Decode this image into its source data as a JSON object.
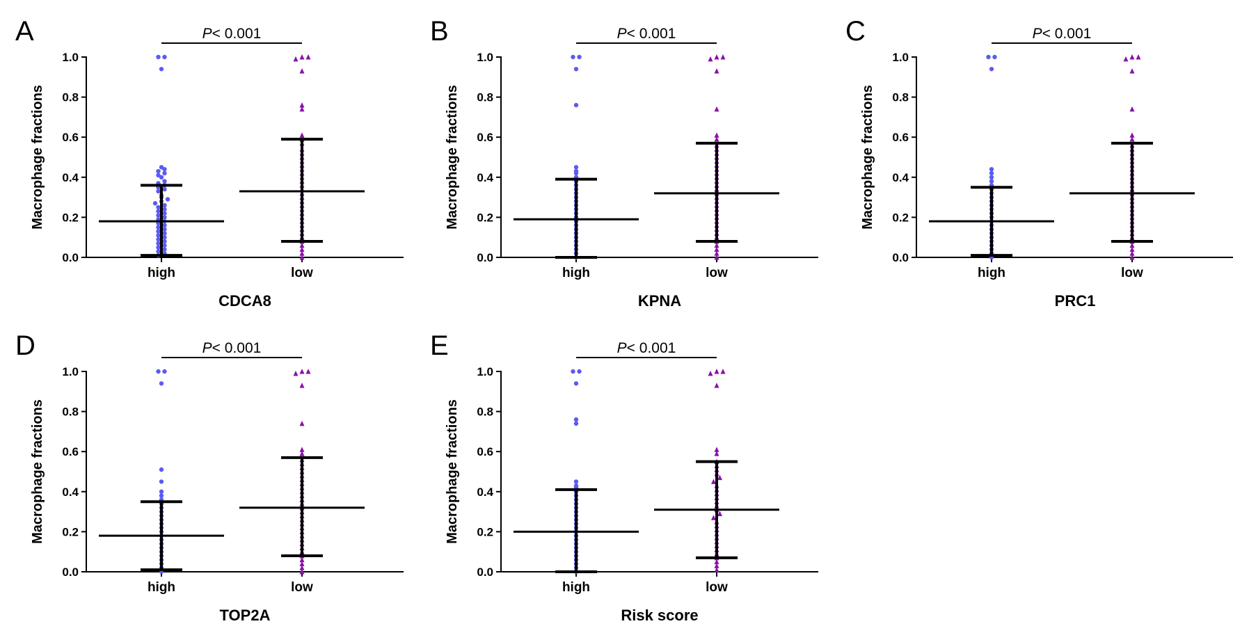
{
  "significance_label": {
    "prefix": "P",
    "rest": "< 0.001"
  },
  "colors": {
    "high": "#5b5bf0",
    "low": "#8b10a8",
    "axis": "#000000"
  },
  "chart_data": [
    {
      "type": "scatter",
      "panel": "A",
      "xlabel": "CDCA8",
      "ylabel": "Macrophage fractions",
      "categories": [
        "high",
        "low"
      ],
      "ylim": [
        0,
        1.0
      ],
      "yticks": [
        "0.0",
        "0.2",
        "0.4",
        "0.6",
        "0.8",
        "1.0"
      ],
      "series": [
        {
          "marker": "circle",
          "mean": 0.18,
          "sd_low": 0.01,
          "sd_high": 0.36,
          "values": [
            1.0,
            1.0,
            0.94,
            0.45,
            0.44,
            0.43,
            0.42,
            0.41,
            0.4,
            0.38,
            0.37,
            0.36,
            0.35,
            0.34,
            0.33,
            0.31,
            0.3,
            0.29,
            0.28,
            0.27,
            0.26,
            0.25,
            0.24,
            0.23,
            0.22,
            0.21,
            0.2,
            0.19,
            0.18,
            0.17,
            0.16,
            0.15,
            0.14,
            0.13,
            0.12,
            0.11,
            0.1,
            0.09,
            0.08,
            0.07,
            0.06,
            0.05,
            0.04,
            0.03,
            0.02,
            0.01
          ]
        },
        {
          "marker": "triangle",
          "mean": 0.33,
          "sd_low": 0.08,
          "sd_high": 0.59,
          "values": [
            1.0,
            1.0,
            0.99,
            0.93,
            0.76,
            0.74,
            0.61,
            0.59,
            0.57,
            0.54,
            0.52,
            0.5,
            0.48,
            0.46,
            0.44,
            0.42,
            0.4,
            0.38,
            0.36,
            0.34,
            0.32,
            0.3,
            0.28,
            0.26,
            0.24,
            0.22,
            0.2,
            0.18,
            0.16,
            0.14,
            0.12,
            0.1,
            0.08,
            0.06,
            0.04,
            0.02,
            0.0
          ]
        }
      ]
    },
    {
      "type": "scatter",
      "panel": "B",
      "xlabel": "KPNA",
      "ylabel": "Macrophage fractions",
      "categories": [
        "high",
        "low"
      ],
      "ylim": [
        0,
        1.0
      ],
      "yticks": [
        "0.0",
        "0.2",
        "0.4",
        "0.6",
        "0.8",
        "1.0"
      ],
      "series": [
        {
          "marker": "circle",
          "mean": 0.19,
          "sd_low": 0.0,
          "sd_high": 0.39,
          "values": [
            1.0,
            1.0,
            0.94,
            0.76,
            0.45,
            0.43,
            0.42,
            0.4,
            0.38,
            0.36,
            0.34,
            0.32,
            0.3,
            0.28,
            0.26,
            0.24,
            0.22,
            0.2,
            0.18,
            0.16,
            0.14,
            0.12,
            0.1,
            0.08,
            0.06,
            0.04,
            0.02,
            0.0
          ]
        },
        {
          "marker": "triangle",
          "mean": 0.32,
          "sd_low": 0.08,
          "sd_high": 0.57,
          "values": [
            1.0,
            1.0,
            0.99,
            0.93,
            0.74,
            0.61,
            0.59,
            0.56,
            0.54,
            0.52,
            0.5,
            0.48,
            0.46,
            0.44,
            0.42,
            0.4,
            0.38,
            0.36,
            0.34,
            0.32,
            0.3,
            0.28,
            0.26,
            0.24,
            0.22,
            0.2,
            0.18,
            0.16,
            0.14,
            0.12,
            0.1,
            0.08,
            0.06,
            0.04,
            0.02,
            0.0
          ]
        }
      ]
    },
    {
      "type": "scatter",
      "panel": "C",
      "xlabel": "PRC1",
      "ylabel": "Macrophage fractions",
      "categories": [
        "high",
        "low"
      ],
      "ylim": [
        0,
        1.0
      ],
      "yticks": [
        "0.0",
        "0.2",
        "0.4",
        "0.6",
        "0.8",
        "1.0"
      ],
      "series": [
        {
          "marker": "circle",
          "mean": 0.18,
          "sd_low": 0.01,
          "sd_high": 0.35,
          "values": [
            1.0,
            1.0,
            0.94,
            0.44,
            0.42,
            0.4,
            0.38,
            0.36,
            0.34,
            0.32,
            0.3,
            0.28,
            0.26,
            0.24,
            0.22,
            0.2,
            0.18,
            0.16,
            0.14,
            0.12,
            0.1,
            0.08,
            0.06,
            0.04,
            0.02,
            0.0
          ]
        },
        {
          "marker": "triangle",
          "mean": 0.32,
          "sd_low": 0.08,
          "sd_high": 0.57,
          "values": [
            1.0,
            1.0,
            0.99,
            0.93,
            0.74,
            0.61,
            0.59,
            0.56,
            0.54,
            0.52,
            0.5,
            0.48,
            0.46,
            0.44,
            0.42,
            0.4,
            0.38,
            0.36,
            0.34,
            0.32,
            0.3,
            0.28,
            0.26,
            0.24,
            0.22,
            0.2,
            0.18,
            0.16,
            0.14,
            0.12,
            0.1,
            0.08,
            0.06,
            0.04,
            0.02,
            0.0
          ]
        }
      ]
    },
    {
      "type": "scatter",
      "panel": "D",
      "xlabel": "TOP2A",
      "ylabel": "Macrophage fractions",
      "categories": [
        "high",
        "low"
      ],
      "ylim": [
        0,
        1.0
      ],
      "yticks": [
        "0.0",
        "0.2",
        "0.4",
        "0.6",
        "0.8",
        "1.0"
      ],
      "series": [
        {
          "marker": "circle",
          "mean": 0.18,
          "sd_low": 0.01,
          "sd_high": 0.35,
          "values": [
            1.0,
            1.0,
            0.94,
            0.51,
            0.45,
            0.4,
            0.38,
            0.36,
            0.34,
            0.32,
            0.3,
            0.28,
            0.26,
            0.24,
            0.22,
            0.2,
            0.18,
            0.16,
            0.14,
            0.12,
            0.1,
            0.08,
            0.06,
            0.04,
            0.02,
            0.0
          ]
        },
        {
          "marker": "triangle",
          "mean": 0.32,
          "sd_low": 0.08,
          "sd_high": 0.57,
          "values": [
            1.0,
            1.0,
            0.99,
            0.93,
            0.74,
            0.61,
            0.59,
            0.56,
            0.54,
            0.52,
            0.5,
            0.48,
            0.46,
            0.44,
            0.42,
            0.4,
            0.38,
            0.36,
            0.34,
            0.32,
            0.3,
            0.28,
            0.26,
            0.24,
            0.22,
            0.2,
            0.18,
            0.16,
            0.14,
            0.12,
            0.1,
            0.08,
            0.06,
            0.04,
            0.02,
            0.0
          ]
        }
      ]
    },
    {
      "type": "scatter",
      "panel": "E",
      "xlabel": "Risk score",
      "ylabel": "Macrophage fractions",
      "categories": [
        "high",
        "low"
      ],
      "ylim": [
        0,
        1.0
      ],
      "yticks": [
        "0.0",
        "0.2",
        "0.4",
        "0.6",
        "0.8",
        "1.0"
      ],
      "series": [
        {
          "marker": "circle",
          "mean": 0.2,
          "sd_low": 0.0,
          "sd_high": 0.41,
          "values": [
            1.0,
            1.0,
            0.94,
            0.76,
            0.74,
            0.45,
            0.43,
            0.42,
            0.4,
            0.38,
            0.36,
            0.34,
            0.32,
            0.3,
            0.28,
            0.26,
            0.24,
            0.22,
            0.2,
            0.18,
            0.16,
            0.14,
            0.12,
            0.1,
            0.08,
            0.06,
            0.04,
            0.02,
            0.0
          ]
        },
        {
          "marker": "triangle",
          "mean": 0.31,
          "sd_low": 0.07,
          "sd_high": 0.55,
          "values": [
            1.0,
            1.0,
            0.99,
            0.93,
            0.61,
            0.59,
            0.55,
            0.53,
            0.51,
            0.49,
            0.47,
            0.45,
            0.43,
            0.41,
            0.39,
            0.37,
            0.35,
            0.33,
            0.31,
            0.29,
            0.27,
            0.25,
            0.23,
            0.21,
            0.19,
            0.17,
            0.15,
            0.13,
            0.11,
            0.09,
            0.07,
            0.05,
            0.03,
            0.01
          ]
        }
      ]
    }
  ]
}
